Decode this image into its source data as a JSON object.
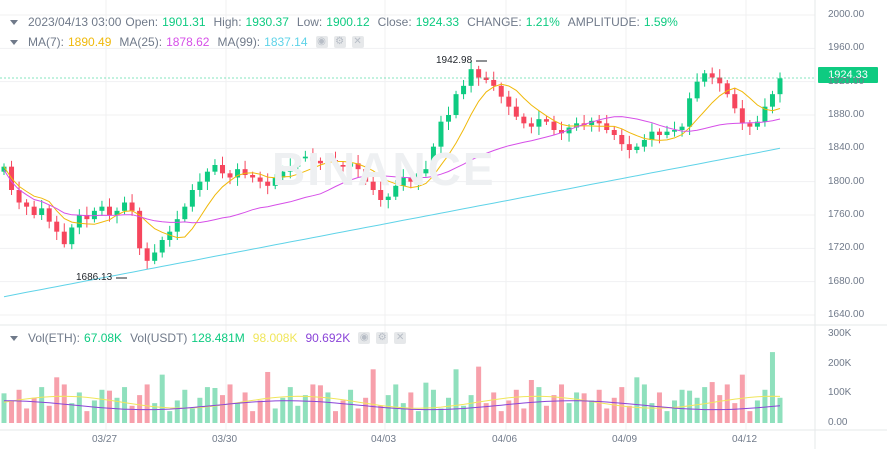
{
  "ohlc_legend": {
    "datetime": "2023/04/13 03:00",
    "open_label": "Open:",
    "open": "1901.31",
    "high_label": "High:",
    "high": "1930.37",
    "low_label": "Low:",
    "low": "1900.12",
    "close_label": "Close:",
    "close": "1924.33",
    "change_label": "CHANGE:",
    "change": "1.21%",
    "amplitude_label": "AMPLITUDE:",
    "amplitude": "1.59%"
  },
  "ma_legend": {
    "ma7_label": "MA(7):",
    "ma7": "1890.49",
    "ma25_label": "MA(25):",
    "ma25": "1878.62",
    "ma99_label": "MA(99):",
    "ma99": "1837.14"
  },
  "vol_legend": {
    "vol_eth_label": "Vol(ETH):",
    "vol_eth": "67.08K",
    "vol_usdt_label": "Vol(USDT)",
    "vol_usdt": "128.481M",
    "vol_ma1": "98.008K",
    "vol_ma2": "90.692K"
  },
  "current_price": "1924.33",
  "extremes": {
    "high": "1942.98",
    "low": "1686.13"
  },
  "watermark": "BINANCE",
  "price_axis": [
    "2000.00",
    "1960.00",
    "1920.00",
    "1880.00",
    "1840.00",
    "1800.00",
    "1760.00",
    "1720.00",
    "1680.00",
    "1640.00"
  ],
  "volume_axis": [
    "300K",
    "200K",
    "100K",
    "0.00"
  ],
  "date_axis": [
    "03/27",
    "03/30",
    "04/03",
    "04/06",
    "04/09",
    "04/12"
  ],
  "colors": {
    "up": "#0ecb81",
    "down": "#f6465d",
    "ma7": "#f0b90b",
    "ma25": "#d64fe8",
    "ma99": "#5fd3e8"
  },
  "icons": [
    "eye-icon",
    "settings-icon",
    "close-icon"
  ]
}
